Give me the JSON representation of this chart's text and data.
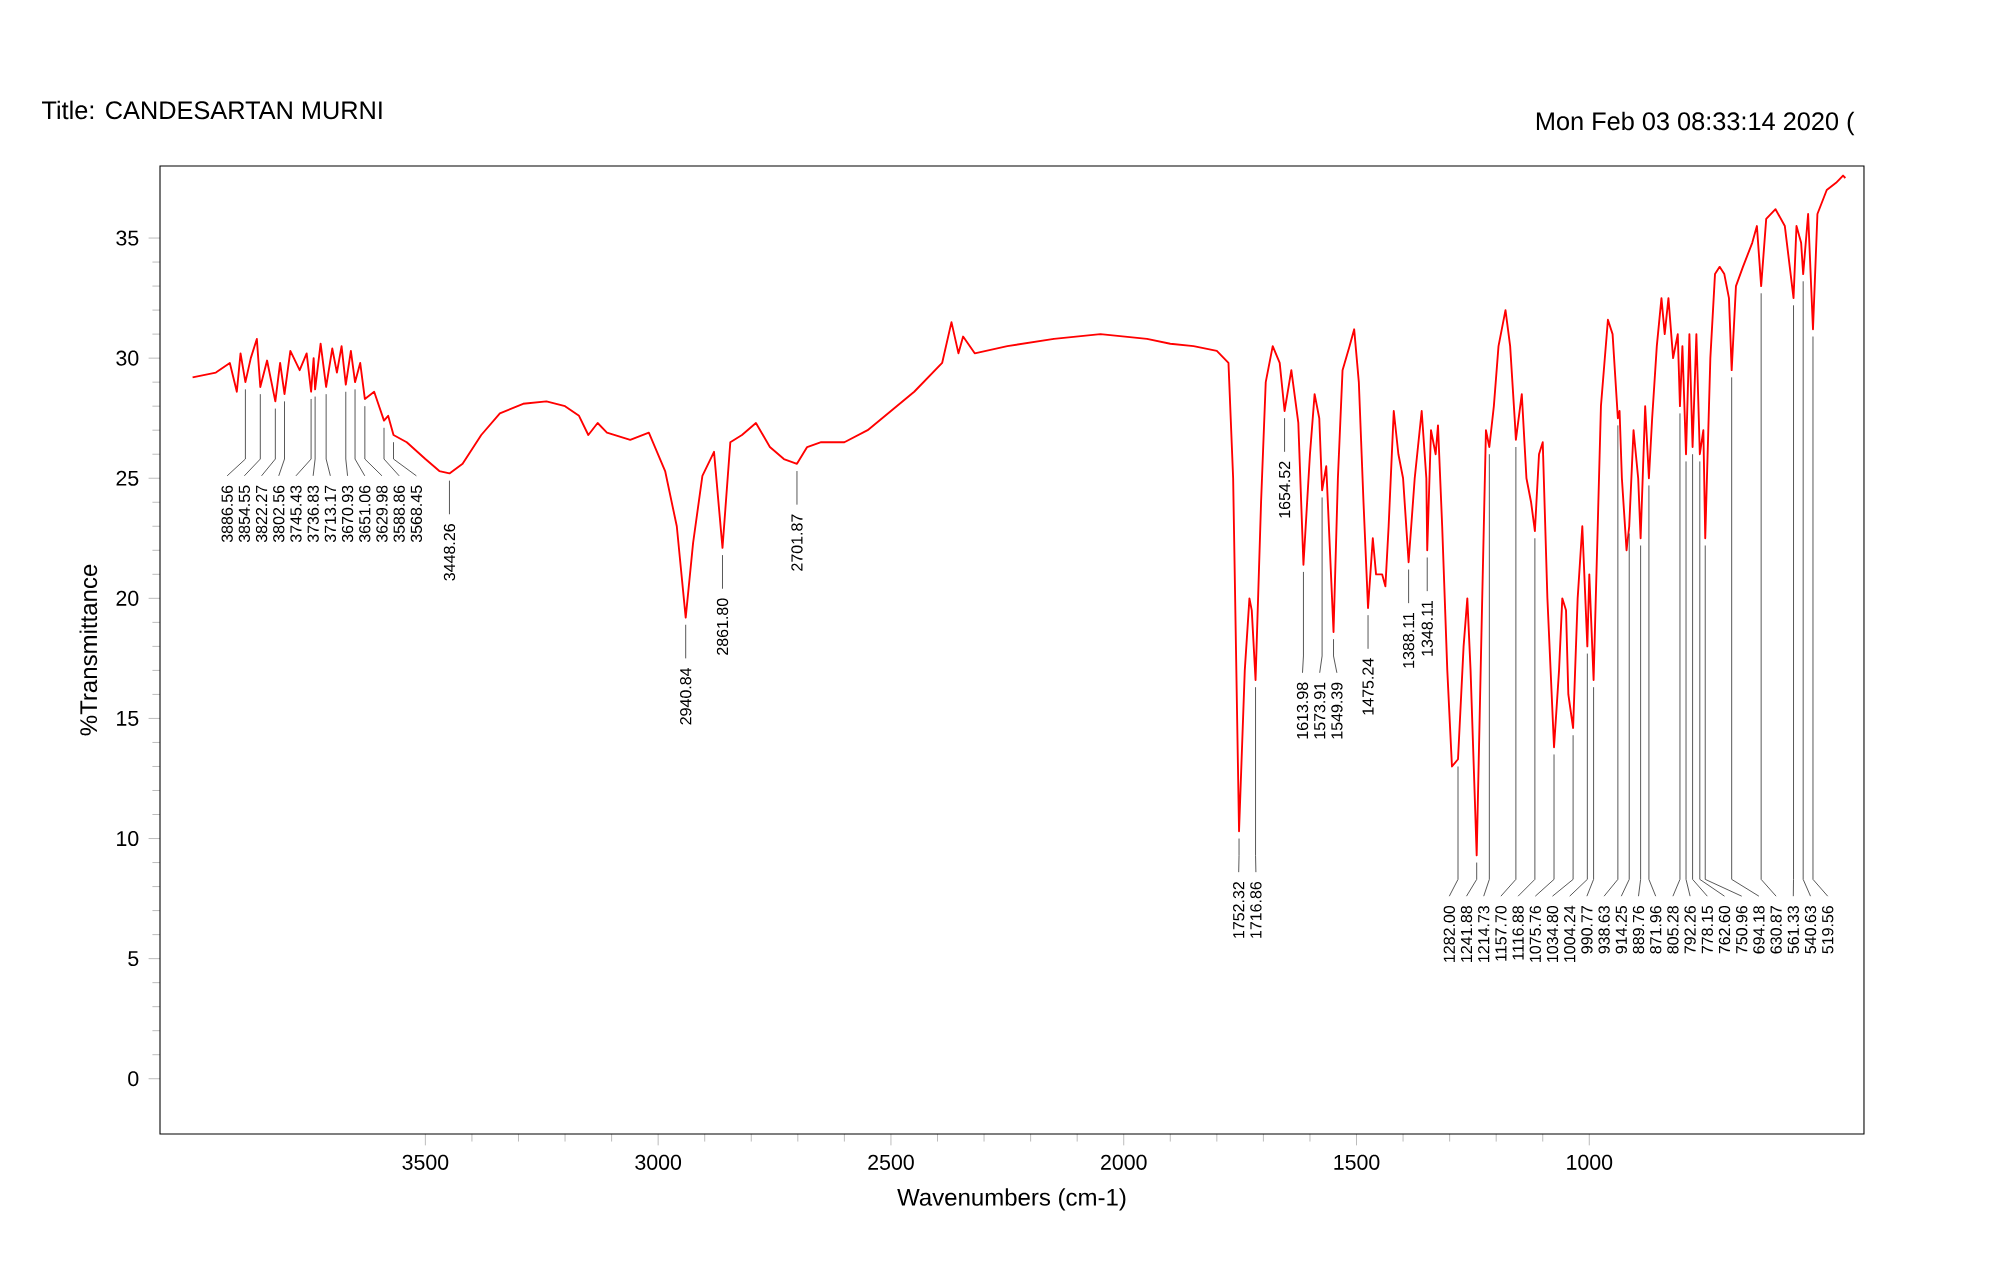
{
  "chart_data": {
    "type": "line",
    "title": "Title:   CANDESARTAN MURNI",
    "xlabel": "Wavenumbers (cm-1)",
    "ylabel": "%Transmittance",
    "color": "#ff0000",
    "xlim": [
      4070,
      410
    ],
    "ylim": [
      -2.3,
      38
    ],
    "xticks": [
      3500,
      3000,
      2500,
      2000,
      1500,
      1000
    ],
    "yticks": [
      0,
      5,
      10,
      15,
      20,
      25,
      30,
      35
    ],
    "x": [
      4000,
      3950,
      3920,
      3905,
      3897,
      3886.56,
      3875,
      3862,
      3854.55,
      3840,
      3822.27,
      3812,
      3802.56,
      3790,
      3770,
      3755,
      3745.43,
      3740,
      3736.83,
      3725,
      3713.17,
      3700,
      3690,
      3680,
      3670.93,
      3660,
      3651.06,
      3640,
      3629.98,
      3610,
      3588.86,
      3580,
      3568.45,
      3540,
      3500,
      3470,
      3448.26,
      3420,
      3380,
      3340,
      3290,
      3240,
      3200,
      3170,
      3150,
      3130,
      3110,
      3060,
      3020,
      2985,
      2960,
      2940.84,
      2925,
      2905,
      2880,
      2861.8,
      2845,
      2820,
      2790,
      2760,
      2730,
      2701.87,
      2680,
      2650,
      2600,
      2550,
      2500,
      2450,
      2390,
      2370,
      2355,
      2345,
      2320,
      2250,
      2150,
      2050,
      1950,
      1900,
      1850,
      1800,
      1775,
      1765,
      1752.32,
      1740,
      1730,
      1725,
      1716.86,
      1705,
      1695,
      1680,
      1665,
      1654.52,
      1640,
      1625,
      1613.98,
      1600,
      1590,
      1580,
      1573.91,
      1565,
      1549.39,
      1540,
      1530,
      1515,
      1505,
      1495,
      1485,
      1475.24,
      1465,
      1458,
      1445,
      1438,
      1431,
      1420,
      1410,
      1400,
      1388.11,
      1375,
      1360,
      1350,
      1348.11,
      1340,
      1330,
      1325,
      1316,
      1305,
      1295,
      1282.0,
      1270,
      1262,
      1255,
      1241.88,
      1230,
      1222,
      1214.73,
      1205,
      1195,
      1180,
      1170,
      1160,
      1157.7,
      1145,
      1135,
      1125,
      1116.88,
      1108,
      1100,
      1090,
      1075.76,
      1065,
      1058,
      1050,
      1045,
      1034.8,
      1025,
      1015,
      1004.24,
      1000,
      990.77,
      975,
      960,
      950,
      938.63,
      935,
      930,
      920,
      914.25,
      905,
      895,
      889.76,
      880,
      871.96,
      865,
      855,
      845,
      838,
      830,
      820,
      810,
      805.28,
      800,
      792.26,
      785,
      778.15,
      770,
      762.6,
      755,
      750.96,
      740,
      730,
      720,
      710,
      700,
      694.18,
      685,
      670,
      650,
      640,
      630.87,
      620,
      600,
      580,
      561.33,
      555,
      545,
      540.63,
      530,
      519.56,
      510,
      490,
      470,
      455,
      450
    ],
    "values": [
      29.2,
      29.4,
      29.8,
      28.6,
      30.2,
      29.0,
      30.0,
      30.8,
      28.8,
      29.9,
      28.2,
      29.8,
      28.5,
      30.3,
      29.5,
      30.2,
      28.6,
      30.0,
      28.7,
      30.6,
      28.8,
      30.4,
      29.4,
      30.5,
      28.9,
      30.3,
      29.0,
      29.8,
      28.3,
      28.6,
      27.4,
      27.6,
      26.8,
      26.5,
      25.8,
      25.3,
      25.2,
      25.6,
      26.8,
      27.7,
      28.1,
      28.2,
      28.0,
      27.6,
      26.8,
      27.3,
      26.9,
      26.6,
      26.9,
      25.3,
      23.0,
      19.2,
      22.3,
      25.1,
      26.1,
      22.1,
      26.5,
      26.8,
      27.3,
      26.3,
      25.8,
      25.6,
      26.3,
      26.5,
      26.5,
      27.0,
      27.8,
      28.6,
      29.8,
      31.5,
      30.2,
      30.9,
      30.2,
      30.5,
      30.8,
      31.0,
      30.8,
      30.6,
      30.5,
      30.3,
      29.8,
      25,
      10.3,
      17,
      20,
      19.5,
      16.6,
      24,
      29,
      30.5,
      29.8,
      27.8,
      29.5,
      27.3,
      21.4,
      26,
      28.5,
      27.5,
      24.5,
      25.5,
      18.6,
      25,
      29.5,
      30.5,
      31.2,
      29,
      24,
      19.6,
      22.5,
      21,
      21,
      20.5,
      23,
      27.8,
      26,
      25,
      21.5,
      25,
      27.8,
      25,
      22,
      27,
      26,
      27.2,
      23,
      17,
      13,
      13.3,
      18,
      20,
      17,
      9.3,
      20,
      27,
      26.3,
      28,
      30.5,
      32,
      30.5,
      27.4,
      26.6,
      28.5,
      25,
      24,
      22.8,
      26,
      26.5,
      20,
      13.8,
      17,
      20,
      19.5,
      16,
      14.6,
      20,
      23,
      18,
      21,
      16.6,
      28,
      31.6,
      31,
      27.5,
      27.8,
      25,
      22,
      23,
      27,
      25,
      22.5,
      28,
      25,
      27.5,
      30.5,
      32.5,
      31,
      32.5,
      30,
      31,
      28.0,
      30.5,
      26,
      31,
      26.3,
      31,
      26.0,
      27.0,
      22.5,
      30,
      33.5,
      33.8,
      33.5,
      32.5,
      29.5,
      33,
      33.8,
      34.8,
      35.5,
      33.0,
      35.8,
      36.2,
      35.5,
      32.5,
      35.5,
      34.8,
      33.5,
      36,
      31.2,
      36,
      37,
      37.3,
      37.6,
      37.5
    ],
    "annotations": [
      "Mon Feb 03 08:33:14 2020 (",
      {
        "text": "3886.56",
        "x": 3886.56,
        "y": 29.0
      },
      {
        "text": "3854.55",
        "x": 3854.55,
        "y": 28.8
      },
      {
        "text": "3822.27",
        "x": 3822.27,
        "y": 28.2
      },
      {
        "text": "3802.56",
        "x": 3802.56,
        "y": 28.5
      },
      {
        "text": "3745.43",
        "x": 3745.43,
        "y": 28.6
      },
      {
        "text": "3736.83",
        "x": 3736.83,
        "y": 28.7
      },
      {
        "text": "3713.17",
        "x": 3713.17,
        "y": 28.8
      },
      {
        "text": "3670.93",
        "x": 3670.93,
        "y": 28.9
      },
      {
        "text": "3651.06",
        "x": 3651.06,
        "y": 29.0
      },
      {
        "text": "3629.98",
        "x": 3629.98,
        "y": 28.3
      },
      {
        "text": "3588.86",
        "x": 3588.86,
        "y": 27.4
      },
      {
        "text": "3568.45",
        "x": 3568.45,
        "y": 26.8
      },
      {
        "text": "3448.26",
        "x": 3448.26,
        "y": 25.2
      },
      {
        "text": "2940.84",
        "x": 2940.84,
        "y": 19.2
      },
      {
        "text": "2861.80",
        "x": 2861.8,
        "y": 22.1
      },
      {
        "text": "2701.87",
        "x": 2701.87,
        "y": 25.6
      },
      {
        "text": "1752.32",
        "x": 1752.32,
        "y": 10.3
      },
      {
        "text": "1716.86",
        "x": 1716.86,
        "y": 16.6
      },
      {
        "text": "1654.52",
        "x": 1654.52,
        "y": 27.8
      },
      {
        "text": "1613.98",
        "x": 1613.98,
        "y": 21.4
      },
      {
        "text": "1573.91",
        "x": 1573.91,
        "y": 24.5
      },
      {
        "text": "1549.39",
        "x": 1549.39,
        "y": 18.6
      },
      {
        "text": "1475.24",
        "x": 1475.24,
        "y": 19.6
      },
      {
        "text": "1388.11",
        "x": 1388.11,
        "y": 21.5
      },
      {
        "text": "1348.11",
        "x": 1348.11,
        "y": 22
      },
      {
        "text": "1282.00",
        "x": 1282.0,
        "y": 13.3
      },
      {
        "text": "1241.88",
        "x": 1241.88,
        "y": 9.3
      },
      {
        "text": "1214.73",
        "x": 1214.73,
        "y": 26.3
      },
      {
        "text": "1157.70",
        "x": 1157.7,
        "y": 26.6
      },
      {
        "text": "1116.88",
        "x": 1116.88,
        "y": 22.8
      },
      {
        "text": "1075.76",
        "x": 1075.76,
        "y": 13.8
      },
      {
        "text": "1034.80",
        "x": 1034.8,
        "y": 14.6
      },
      {
        "text": "1004.24",
        "x": 1004.24,
        "y": 18
      },
      {
        "text": "990.77",
        "x": 990.77,
        "y": 16.6
      },
      {
        "text": "938.63",
        "x": 938.63,
        "y": 27.5
      },
      {
        "text": "914.25",
        "x": 914.25,
        "y": 23
      },
      {
        "text": "889.76",
        "x": 889.76,
        "y": 22.5
      },
      {
        "text": "871.96",
        "x": 871.96,
        "y": 25
      },
      {
        "text": "805.28",
        "x": 805.28,
        "y": 28.0
      },
      {
        "text": "792.26",
        "x": 792.26,
        "y": 26
      },
      {
        "text": "778.15",
        "x": 778.15,
        "y": 26.3
      },
      {
        "text": "762.60",
        "x": 762.6,
        "y": 26.0
      },
      {
        "text": "750.96",
        "x": 750.96,
        "y": 22.5
      },
      {
        "text": "694.18",
        "x": 694.18,
        "y": 29.5
      },
      {
        "text": "630.87",
        "x": 630.87,
        "y": 33.0
      },
      {
        "text": "561.33",
        "x": 561.33,
        "y": 32.5
      },
      {
        "text": "540.63",
        "x": 540.63,
        "y": 33.5
      },
      {
        "text": "519.56",
        "x": 519.56,
        "y": 31.2
      }
    ]
  }
}
